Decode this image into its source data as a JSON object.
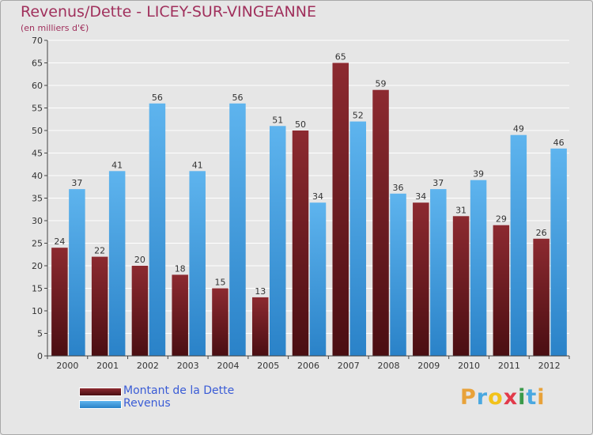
{
  "header": {
    "title": "Revenus/Dette - LICEY-SUR-VINGEANNE",
    "subtitle": "(en milliers d'€)"
  },
  "colors": {
    "title": "#a0305c",
    "dette": "#7a1f24",
    "revenus": "#4da6e8",
    "legend_text": "#3a5cd6",
    "axis": "#444444"
  },
  "chart_data": {
    "type": "bar",
    "categories": [
      "2000",
      "2001",
      "2002",
      "2003",
      "2004",
      "2005",
      "2006",
      "2007",
      "2008",
      "2009",
      "2010",
      "2011",
      "2012"
    ],
    "series": [
      {
        "name": "Montant de la Dette",
        "values": [
          24,
          22,
          20,
          18,
          15,
          13,
          50,
          65,
          59,
          34,
          31,
          29,
          26
        ]
      },
      {
        "name": "Revenus",
        "values": [
          37,
          41,
          56,
          41,
          56,
          51,
          34,
          52,
          36,
          37,
          39,
          49,
          46
        ]
      }
    ],
    "title": "Revenus/Dette - LICEY-SUR-VINGEANNE",
    "ylabel": "(en milliers d'€)",
    "ylim": [
      0,
      70
    ],
    "yticks": [
      0,
      5,
      10,
      15,
      20,
      25,
      30,
      35,
      40,
      45,
      50,
      55,
      60,
      65,
      70
    ],
    "grid": true,
    "legend_position": "bottom-left"
  },
  "legend": {
    "items": [
      {
        "label": "Montant de la Dette",
        "color": "#7a1f24"
      },
      {
        "label": "Revenus",
        "color": "#4da6e8"
      }
    ]
  },
  "logo": {
    "letters": [
      {
        "char": "P",
        "color": "#e8a23a"
      },
      {
        "char": "r",
        "color": "#4aa8e0"
      },
      {
        "char": "o",
        "color": "#f2c21a"
      },
      {
        "char": "x",
        "color": "#e23a4a"
      },
      {
        "char": "i",
        "color": "#3a9a4a"
      },
      {
        "char": "t",
        "color": "#4aa8e0"
      },
      {
        "char": "i",
        "color": "#e8a23a"
      }
    ]
  }
}
